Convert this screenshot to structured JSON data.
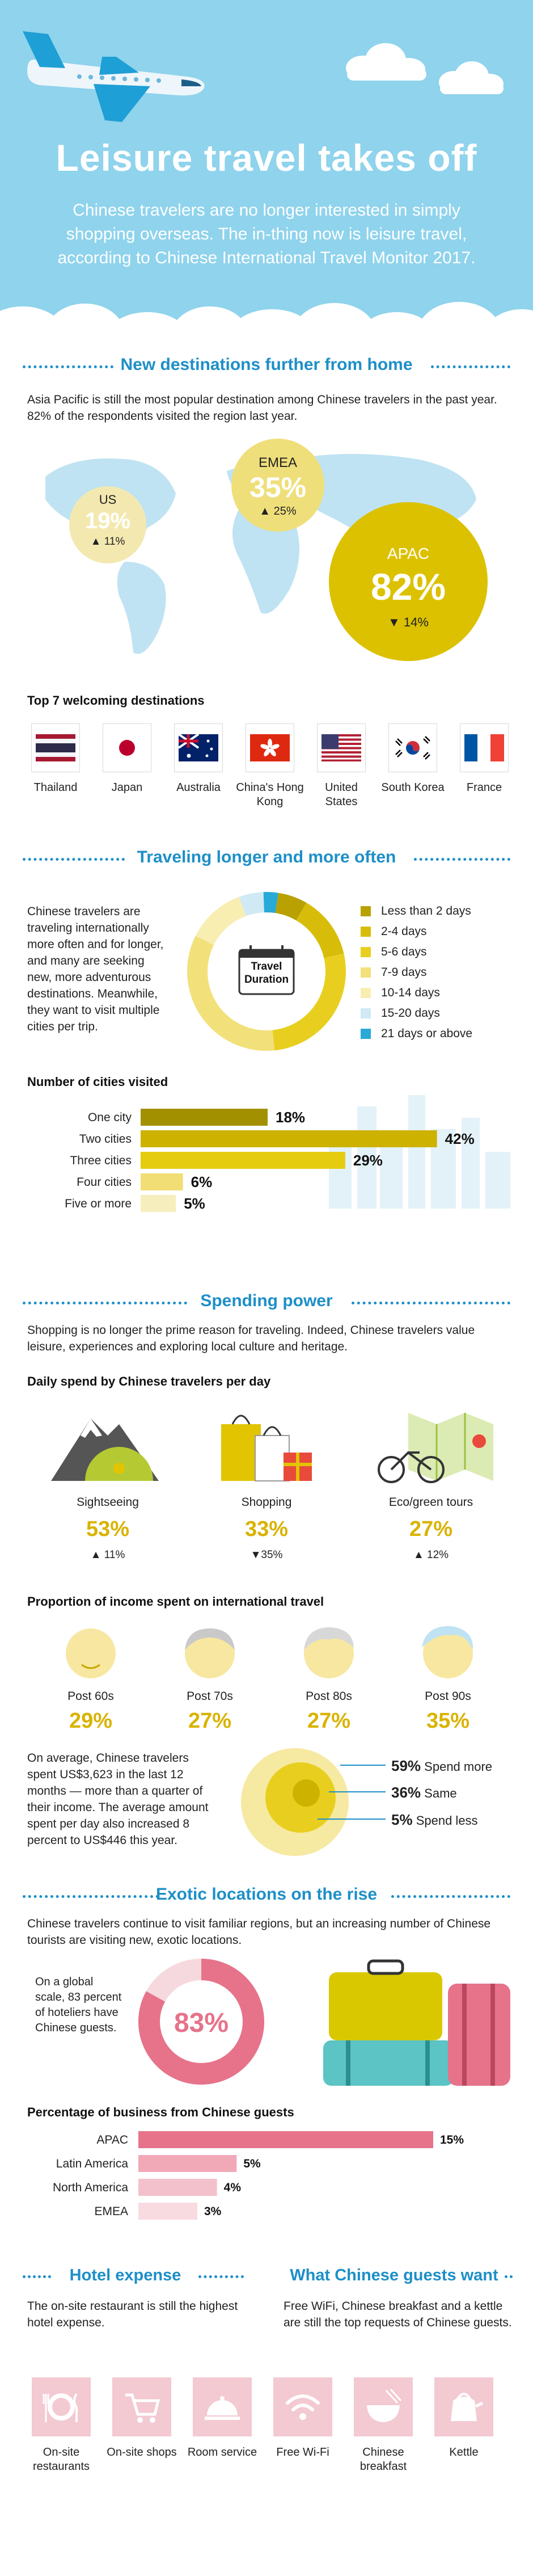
{
  "hero": {
    "title": "Leisure travel takes off",
    "subtitle": "Chinese travelers are no longer interested in simply shopping overseas. The in-thing now is leisure travel, according to Chinese International Travel Monitor 2017."
  },
  "section1": {
    "title": "New destinations further from home",
    "intro": "Asia Pacific is still the most popular destination among Chinese travelers in the past year. 82% of the respondents visited the region last year.",
    "regions": [
      {
        "name": "US",
        "pct": "19%",
        "change": "▲ 11%"
      },
      {
        "name": "EMEA",
        "pct": "35%",
        "change": "▲ 25%"
      },
      {
        "name": "APAC",
        "pct": "82%",
        "change": "▼ 14%"
      }
    ],
    "top7_heading": "Top 7 welcoming destinations",
    "destinations": [
      "Thailand",
      "Japan",
      "Australia",
      "China's Hong Kong",
      "United States",
      "South Korea",
      "France"
    ]
  },
  "section2": {
    "title": "Traveling longer and more often",
    "text": "Chinese travelers are traveling internationally more often and for longer, and many are seeking new, more adventurous destinations. Meanwhile, they want to visit multiple cities per trip.",
    "donut_label": "Travel Duration",
    "duration_legend": [
      {
        "label": "Less than 2 days",
        "color": "#b8a100"
      },
      {
        "label": "2-4 days",
        "color": "#d7bd0a"
      },
      {
        "label": "5-6 days",
        "color": "#e8cf1f"
      },
      {
        "label": "7-9 days",
        "color": "#f2e07a"
      },
      {
        "label": "10-14 days",
        "color": "#f8eeb2"
      },
      {
        "label": "15-20 days",
        "color": "#cfe9f5"
      },
      {
        "label": "21 days or above",
        "color": "#29a9d6"
      }
    ],
    "cities_heading": "Number of cities visited"
  },
  "chart_data": {
    "type": "bar",
    "categories": [
      "One city",
      "Two cities",
      "Three cities",
      "Four cities",
      "Five or more"
    ],
    "values": [
      18,
      42,
      29,
      6,
      5
    ],
    "value_labels": [
      "18%",
      "42%",
      "29%",
      "6%",
      "5%"
    ],
    "colors": [
      "#a39000",
      "#cdb200",
      "#e5cc0e",
      "#f1de75",
      "#f7eebe"
    ]
  },
  "section3": {
    "title": "Spending power",
    "intro": "Shopping is no longer the prime reason for traveling. Indeed, Chinese travelers value leisure, experiences and exploring local culture and heritage.",
    "daily_heading": "Daily spend by Chinese travelers per day",
    "daily": [
      {
        "label": "Sightseeing",
        "pct": "53%",
        "change": "▲ 11%"
      },
      {
        "label": "Shopping",
        "pct": "33%",
        "change": "▼35%"
      },
      {
        "label": "Eco/green tours",
        "pct": "27%",
        "change": "▲ 12%"
      }
    ],
    "income_heading": "Proportion of income spent on international travel",
    "generations": [
      {
        "label": "Post 60s",
        "pct": "29%"
      },
      {
        "label": "Post 70s",
        "pct": "27%"
      },
      {
        "label": "Post 80s",
        "pct": "27%"
      },
      {
        "label": "Post 90s",
        "pct": "35%"
      }
    ],
    "average_text": "On average, Chinese travelers spent US$3,623 in the last 12 months — more than a quarter of their income. The average amount spent per day also increased 8 percent to US$446 this year.",
    "spend_trend": [
      {
        "pct": "59%",
        "label": "Spend more"
      },
      {
        "pct": "36%",
        "label": "Same"
      },
      {
        "pct": "5%",
        "label": "Spend less"
      }
    ]
  },
  "section4": {
    "title": "Exotic locations on the rise",
    "intro": "Chinese travelers continue to visit familiar regions, but an increasing number of Chinese tourists are visiting new, exotic locations.",
    "hotelier_text": "On a global scale, 83 percent of hoteliers have Chinese guests.",
    "hotelier_pct": "83%",
    "business_heading": "Percentage of business from Chinese guests",
    "business": [
      {
        "label": "APAC",
        "value": 15,
        "text": "15%"
      },
      {
        "label": "Latin America",
        "value": 5,
        "text": "5%"
      },
      {
        "label": "North America",
        "value": 4,
        "text": "4%"
      },
      {
        "label": "EMEA",
        "value": 3,
        "text": "3%"
      }
    ]
  },
  "section5": {
    "left_title": "Hotel expense",
    "left_text": "The on-site restaurant is still the highest hotel expense.",
    "right_title": "What Chinese guests want",
    "right_text": "Free WiFi, Chinese breakfast and a kettle are still the top requests of Chinese guests.",
    "tiles": [
      "On-site restaurants",
      "On-site shops",
      "Room service",
      "Free Wi-Fi",
      "Chinese breakfast",
      "Kettle"
    ]
  }
}
